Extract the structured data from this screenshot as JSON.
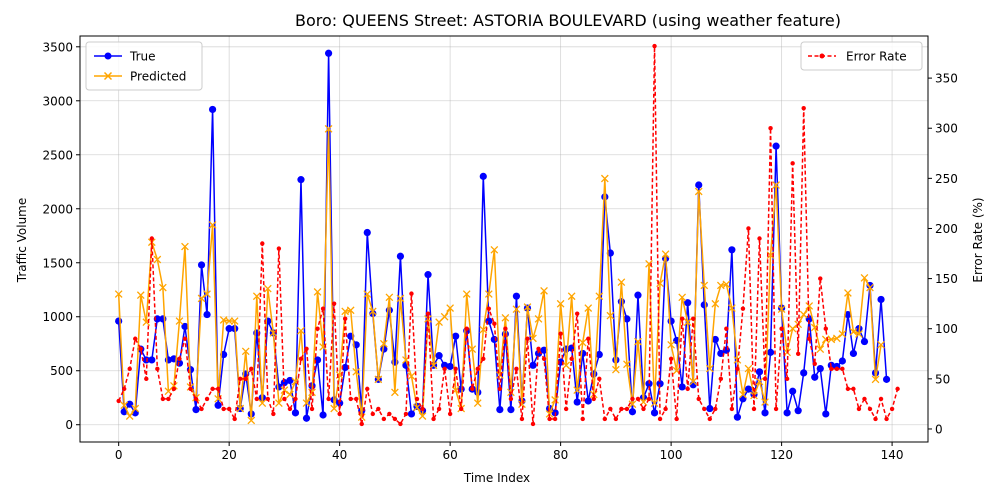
{
  "chart_data": {
    "type": "line",
    "title": "Boro: QUEENS Street: ASTORIA BOULEVARD (using weather feature)",
    "xlabel": "Time Index",
    "ylabel": "Traffic Volume",
    "y2label": "Error Rate (%)",
    "xlim": [
      -7,
      146.5
    ],
    "ylim": [
      -160,
      3600
    ],
    "y2lim": [
      -13,
      392
    ],
    "xticks": [
      0,
      20,
      40,
      60,
      80,
      100,
      120,
      140
    ],
    "yticks": [
      0,
      500,
      1000,
      1500,
      2000,
      2500,
      3000,
      3500
    ],
    "y2ticks": [
      0,
      50,
      100,
      150,
      200,
      250,
      300,
      350
    ],
    "grid": true,
    "legend_left_placement": "upper-left",
    "legend_right_placement": "upper-right",
    "series": [
      {
        "name": "True",
        "axis": "left",
        "color": "#0000ff",
        "marker": "circle",
        "values": [
          960,
          120,
          190,
          110,
          700,
          600,
          600,
          980,
          980,
          600,
          610,
          570,
          910,
          510,
          140,
          1480,
          1020,
          2920,
          180,
          650,
          890,
          890,
          150,
          470,
          100,
          850,
          250,
          960,
          850,
          350,
          390,
          410,
          110,
          2270,
          60,
          360,
          600,
          90,
          3440,
          230,
          200,
          530,
          820,
          740,
          130,
          1780,
          1030,
          420,
          700,
          1060,
          580,
          1560,
          550,
          100,
          170,
          130,
          1390,
          550,
          640,
          550,
          540,
          820,
          330,
          870,
          330,
          300,
          2300,
          960,
          790,
          140,
          840,
          140,
          1190,
          220,
          1080,
          550,
          660,
          690,
          150,
          110,
          580,
          700,
          710,
          210,
          660,
          220,
          470,
          650,
          2110,
          1590,
          600,
          1140,
          980,
          120,
          1200,
          250,
          380,
          110,
          380,
          1540,
          960,
          780,
          350,
          1130,
          370,
          2220,
          1110,
          150,
          790,
          660,
          690,
          1620,
          70,
          240,
          330,
          280,
          490,
          110,
          670,
          2580,
          1080,
          110,
          310,
          130,
          480,
          980,
          440,
          520,
          100,
          550,
          540,
          590,
          1020,
          660,
          890,
          770,
          1290,
          480,
          1160,
          420
        ]
      },
      {
        "name": "Predicted",
        "axis": "left",
        "color": "#ffa500",
        "marker": "x",
        "values": [
          1210,
          180,
          80,
          150,
          1200,
          950,
          1690,
          1530,
          1270,
          310,
          360,
          960,
          1650,
          350,
          250,
          1170,
          1210,
          1850,
          240,
          970,
          960,
          960,
          150,
          680,
          40,
          1190,
          200,
          1260,
          850,
          200,
          320,
          280,
          400,
          870,
          200,
          300,
          1230,
          720,
          2740,
          150,
          460,
          1050,
          1060,
          490,
          70,
          1210,
          1050,
          420,
          750,
          1180,
          300,
          1170,
          600,
          450,
          160,
          80,
          980,
          550,
          950,
          1000,
          1080,
          320,
          150,
          1210,
          700,
          200,
          880,
          1210,
          1620,
          460,
          990,
          300,
          1070,
          190,
          1090,
          800,
          980,
          1240,
          100,
          230,
          1120,
          550,
          1190,
          320,
          760,
          1080,
          280,
          1190,
          2280,
          1010,
          510,
          1320,
          560,
          190,
          770,
          210,
          1490,
          200,
          1310,
          1580,
          740,
          500,
          1180,
          950,
          400,
          2160,
          1290,
          520,
          1120,
          1290,
          1300,
          1080,
          600,
          280,
          520,
          270,
          400,
          210,
          1570,
          2220,
          1070,
          670,
          890,
          930,
          1020,
          1100,
          900,
          700,
          790,
          790,
          800,
          840,
          1220,
          860,
          840,
          1360,
          1270,
          420,
          740
        ]
      },
      {
        "name": "Error Rate",
        "axis": "right",
        "color": "#ff0000",
        "marker": "dot",
        "values": [
          28,
          40,
          60,
          90,
          80,
          50,
          190,
          60,
          30,
          30,
          40,
          70,
          90,
          40,
          30,
          20,
          30,
          40,
          40,
          20,
          20,
          10,
          50,
          50,
          60,
          30,
          185,
          30,
          15,
          180,
          30,
          20,
          30,
          70,
          80,
          20,
          100,
          120,
          30,
          125,
          15,
          110,
          30,
          30,
          5,
          40,
          15,
          20,
          10,
          15,
          10,
          5,
          15,
          135,
          30,
          20,
          115,
          10,
          20,
          60,
          15,
          60,
          20,
          100,
          40,
          60,
          70,
          120,
          105,
          40,
          100,
          30,
          60,
          10,
          90,
          5,
          80,
          70,
          10,
          10,
          95,
          20,
          70,
          115,
          10,
          90,
          30,
          50,
          10,
          20,
          10,
          20,
          20,
          30,
          30,
          20,
          30,
          382,
          10,
          20,
          70,
          10,
          110,
          40,
          110,
          30,
          20,
          10,
          20,
          50,
          100,
          20,
          60,
          120,
          200,
          20,
          190,
          50,
          300,
          20,
          100,
          50,
          265,
          75,
          320,
          90,
          65,
          150,
          100,
          60,
          60,
          60,
          40,
          40,
          20,
          30,
          20,
          10,
          30,
          10,
          20,
          40
        ]
      }
    ]
  }
}
